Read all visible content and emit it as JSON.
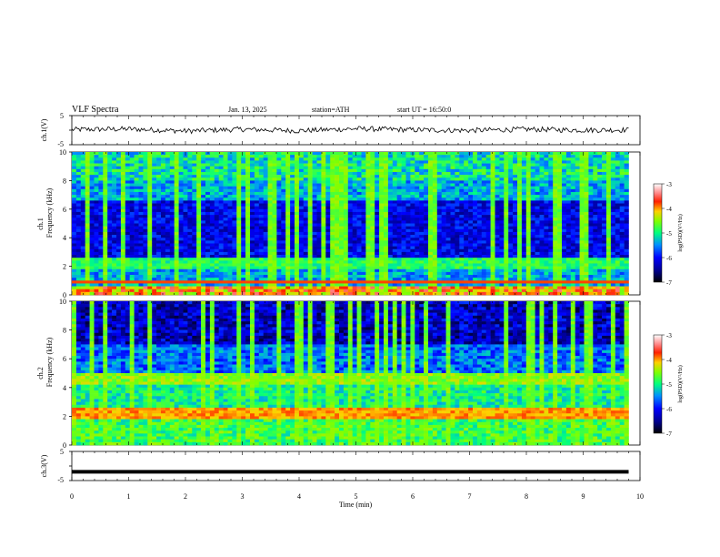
{
  "header": {
    "title": "VLF Spectra",
    "date": "Jan. 13, 2025",
    "station": "station=ATH",
    "start": "start UT =  16:50:0"
  },
  "panels": {
    "ch1": {
      "ylabel": "ch.1(V)",
      "ymax": "5",
      "ymin": "-5"
    },
    "spec1": {
      "ylabel": "ch.1",
      "ylabel2": "Frequency (kHz)"
    },
    "spec2": {
      "ylabel": "ch.2",
      "ylabel2": "Frequency (kHz)"
    },
    "ch3": {
      "ylabel": "ch.3(V)",
      "ymax": "5",
      "ymin": "-5"
    }
  },
  "colorbar": {
    "label": "log(PSD)(V²/Hz)",
    "ticks": [
      "-3",
      "-4",
      "-5",
      "-6",
      "-7"
    ]
  },
  "colors": {
    "scale": [
      "#000080",
      "#0000ff",
      "#0080ff",
      "#00ffff",
      "#00ff80",
      "#80ff00",
      "#ffff00",
      "#ff8000",
      "#ff0000",
      "#ffffff"
    ]
  },
  "chart_data": [
    {
      "type": "line",
      "name": "ch1-waveform",
      "ylabel": "ch.1(V)",
      "ylim": [
        -5,
        5
      ],
      "xlim": [
        0,
        10
      ],
      "x_unit": "min",
      "note_values": "approx. +/-1 V noise around 0",
      "x": [
        0,
        1,
        2,
        3,
        4,
        5,
        6,
        7,
        8,
        9,
        9.8
      ],
      "y": [
        0.2,
        0.4,
        -0.3,
        0.3,
        -0.2,
        0.5,
        0.1,
        -0.1,
        0.3,
        0.0,
        0.1
      ]
    },
    {
      "type": "heatmap",
      "name": "ch1-spectrogram",
      "ylabel": "Frequency (kHz)",
      "ylim": [
        0,
        10
      ],
      "xlim": [
        0,
        10
      ],
      "yticks": [
        "0",
        "2",
        "4",
        "6",
        "8",
        "10"
      ],
      "clim": [
        -7,
        -3
      ]
    },
    {
      "type": "heatmap",
      "name": "ch2-spectrogram",
      "ylabel": "Frequency (kHz)",
      "ylim": [
        0,
        10
      ],
      "xlim": [
        0,
        10
      ],
      "yticks": [
        "0",
        "2",
        "4",
        "6",
        "8",
        "10"
      ],
      "clim": [
        -7,
        -3
      ]
    },
    {
      "type": "line",
      "name": "ch3-waveform",
      "ylabel": "ch.3(V)",
      "ylim": [
        -5,
        5
      ],
      "xlim": [
        0,
        10
      ],
      "x": [
        0,
        9.8
      ],
      "y": [
        -2,
        -2
      ]
    }
  ],
  "xaxis": {
    "label": "Time (min)",
    "ticks": [
      "0",
      "1",
      "2",
      "3",
      "4",
      "5",
      "6",
      "7",
      "8",
      "9",
      "10"
    ]
  }
}
